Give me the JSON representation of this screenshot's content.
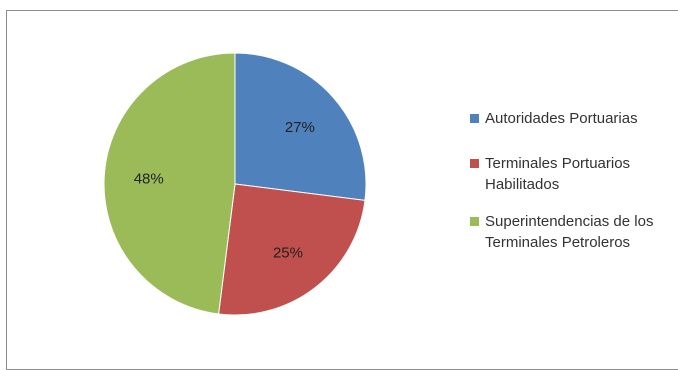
{
  "chart_data": {
    "type": "pie",
    "title": "",
    "categories": [
      "Autoridades Portuarias",
      "Terminales Portuarios\nHabilitados",
      "Superintendencias de los\nTerminales Petroleros"
    ],
    "values": [
      27,
      25,
      48
    ],
    "value_labels": [
      "27%",
      "25%",
      "48%"
    ],
    "colors": [
      "#4f81bd",
      "#c0504d",
      "#9bbb59"
    ],
    "legend_position": "right",
    "start_angle_deg": 0,
    "direction": "clockwise"
  }
}
